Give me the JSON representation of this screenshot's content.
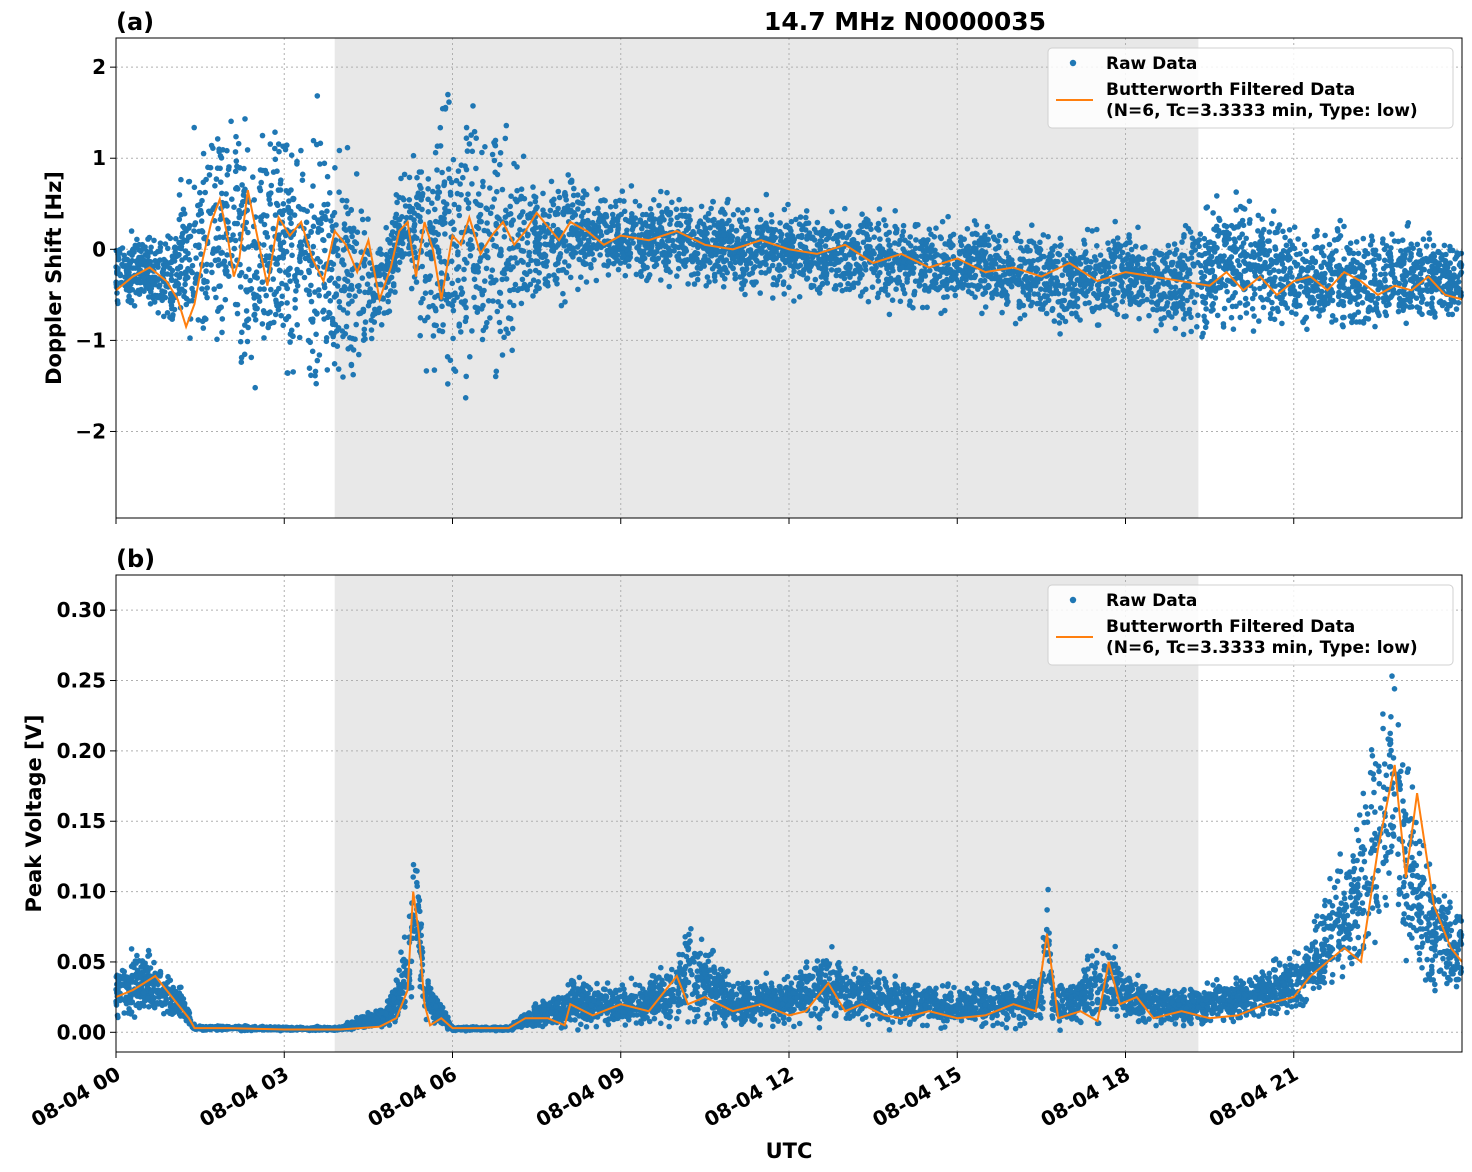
{
  "colors": {
    "raw": "#1f77b4",
    "filtered": "#ff7f0e",
    "shade": "#e8e8e8",
    "grid": "#b0b0b0"
  },
  "chart_data": [
    {
      "type": "scatter",
      "panel_label": "(a)",
      "title": "14.7 MHz N0000035",
      "ylabel": "Doppler Shift [Hz]",
      "xlabel": "",
      "xlim_hours": [
        0,
        24
      ],
      "ylim": [
        -2.95,
        2.32
      ],
      "yticks": [
        2,
        1,
        0,
        -1,
        -2
      ],
      "ytick_labels": [
        "2",
        "1",
        "0",
        "−1",
        "−2"
      ],
      "shaded_interval_hours": [
        3.9,
        19.3
      ],
      "grid": true,
      "legend_position": "top-right",
      "legend": [
        "Raw Data",
        "Butterworth Filtered Data",
        "(N=6, Tc=3.3333 min, Type: low)"
      ],
      "series": [
        {
          "name": "Butterworth Filtered Data",
          "kind": "line",
          "x": [
            0,
            0.3,
            0.6,
            0.9,
            1.1,
            1.25,
            1.4,
            1.55,
            1.7,
            1.85,
            2.0,
            2.1,
            2.2,
            2.35,
            2.5,
            2.7,
            2.9,
            3.1,
            3.3,
            3.5,
            3.7,
            3.9,
            4.1,
            4.3,
            4.5,
            4.7,
            4.9,
            5.05,
            5.2,
            5.35,
            5.5,
            5.65,
            5.8,
            6.0,
            6.15,
            6.3,
            6.5,
            6.7,
            6.9,
            7.1,
            7.3,
            7.5,
            7.7,
            7.9,
            8.1,
            8.4,
            8.7,
            9.0,
            9.5,
            10.0,
            10.5,
            11.0,
            11.5,
            12.0,
            12.5,
            13.0,
            13.5,
            14.0,
            14.5,
            15.0,
            15.5,
            16.0,
            16.5,
            17.0,
            17.5,
            18.0,
            18.5,
            19.0,
            19.5,
            19.8,
            20.1,
            20.4,
            20.7,
            21.0,
            21.3,
            21.6,
            21.9,
            22.2,
            22.5,
            22.8,
            23.1,
            23.4,
            23.7,
            24.0
          ],
          "y": [
            -0.45,
            -0.3,
            -0.2,
            -0.35,
            -0.55,
            -0.85,
            -0.6,
            -0.1,
            0.3,
            0.55,
            0.1,
            -0.3,
            -0.1,
            0.65,
            0.2,
            -0.4,
            0.35,
            0.15,
            0.3,
            -0.1,
            -0.35,
            0.2,
            0.05,
            -0.25,
            0.1,
            -0.55,
            -0.2,
            0.2,
            0.3,
            -0.3,
            0.3,
            0.0,
            -0.55,
            0.15,
            0.05,
            0.35,
            -0.05,
            0.15,
            0.3,
            0.05,
            0.2,
            0.4,
            0.25,
            0.1,
            0.3,
            0.2,
            0.05,
            0.15,
            0.1,
            0.2,
            0.05,
            0.0,
            0.1,
            0.0,
            -0.05,
            0.05,
            -0.15,
            -0.05,
            -0.2,
            -0.1,
            -0.25,
            -0.2,
            -0.3,
            -0.15,
            -0.35,
            -0.25,
            -0.3,
            -0.35,
            -0.4,
            -0.25,
            -0.45,
            -0.3,
            -0.5,
            -0.35,
            -0.3,
            -0.45,
            -0.25,
            -0.35,
            -0.5,
            -0.4,
            -0.45,
            -0.3,
            -0.5,
            -0.55
          ]
        },
        {
          "name": "Raw Data",
          "kind": "scatter-envelope",
          "x": [
            0,
            0.5,
            1.0,
            1.3,
            1.5,
            1.8,
            2.0,
            2.3,
            2.6,
            3.0,
            3.3,
            3.6,
            4.0,
            4.3,
            4.6,
            4.9,
            5.2,
            5.5,
            5.8,
            6.1,
            6.4,
            6.7,
            7.0,
            7.3,
            7.6,
            8.0,
            8.2,
            9.0,
            10.0,
            11.0,
            12.0,
            13.0,
            14.0,
            15.0,
            16.0,
            17.0,
            18.0,
            19.0,
            19.5,
            20.0,
            21.0,
            22.0,
            23.0,
            24.0
          ],
          "y_low": [
            -0.7,
            -0.6,
            -1.0,
            -1.1,
            -1.2,
            -1.4,
            -1.5,
            -1.4,
            -1.5,
            -1.7,
            -1.6,
            -1.8,
            -1.8,
            -1.6,
            -1.2,
            -0.8,
            -0.3,
            -1.6,
            -1.8,
            -1.7,
            -1.8,
            -1.7,
            -1.5,
            -0.8,
            -0.6,
            -0.7,
            -0.4,
            -0.35,
            -0.4,
            -0.5,
            -0.6,
            -0.6,
            -0.7,
            -0.7,
            -0.8,
            -0.9,
            -0.9,
            -1.0,
            -1.1,
            -1.0,
            -0.9,
            -1.0,
            -0.9,
            -0.8
          ],
          "y_high": [
            0.2,
            0.2,
            0.3,
            1.2,
            1.4,
            1.6,
            1.8,
            1.5,
            1.4,
            1.6,
            1.6,
            1.5,
            1.3,
            0.9,
            0.3,
            0.5,
            1.1,
            1.6,
            1.9,
            1.8,
            1.7,
            1.6,
            1.5,
            0.9,
            0.8,
            1.0,
            0.8,
            0.7,
            0.6,
            0.6,
            0.5,
            0.5,
            0.45,
            0.4,
            0.3,
            0.25,
            0.3,
            0.35,
            0.6,
            0.7,
            0.35,
            0.3,
            0.35,
            0.1
          ]
        }
      ]
    },
    {
      "type": "scatter",
      "panel_label": "(b)",
      "title": "",
      "ylabel": "Peak Voltage [V]",
      "xlabel": "UTC",
      "xlim_hours": [
        0,
        24
      ],
      "ylim": [
        -0.014,
        0.325
      ],
      "yticks": [
        0.3,
        0.25,
        0.2,
        0.15,
        0.1,
        0.05,
        0.0
      ],
      "ytick_labels": [
        "0.30",
        "0.25",
        "0.20",
        "0.15",
        "0.10",
        "0.05",
        "0.00"
      ],
      "xticks_hours": [
        0,
        3,
        6,
        9,
        12,
        15,
        18,
        21
      ],
      "xtick_labels": [
        "08-04 00",
        "08-04 03",
        "08-04 06",
        "08-04 09",
        "08-04 12",
        "08-04 15",
        "08-04 18",
        "08-04 21"
      ],
      "shaded_interval_hours": [
        3.9,
        19.3
      ],
      "grid": true,
      "legend_position": "top-right",
      "legend": [
        "Raw Data",
        "Butterworth Filtered Data",
        "(N=6, Tc=3.3333 min, Type: low)"
      ],
      "series": [
        {
          "name": "Butterworth Filtered Data",
          "kind": "line",
          "x": [
            0,
            0.3,
            0.5,
            0.7,
            0.9,
            1.1,
            1.3,
            1.4,
            2.0,
            3.0,
            4.0,
            4.7,
            5.0,
            5.2,
            5.3,
            5.4,
            5.5,
            5.6,
            5.8,
            6.0,
            7.0,
            7.3,
            7.7,
            8.0,
            8.1,
            8.5,
            9.0,
            9.5,
            10.0,
            10.2,
            10.5,
            11.0,
            11.5,
            12.0,
            12.3,
            12.7,
            13.0,
            13.3,
            13.7,
            14.0,
            14.5,
            15.0,
            15.5,
            16.0,
            16.4,
            16.6,
            16.8,
            17.2,
            17.5,
            17.7,
            17.9,
            18.2,
            18.5,
            19.0,
            19.5,
            20.0,
            20.5,
            21.0,
            21.3,
            21.6,
            21.9,
            22.2,
            22.5,
            22.8,
            23.0,
            23.2,
            23.5,
            23.8,
            24.0
          ],
          "y": [
            0.025,
            0.03,
            0.035,
            0.04,
            0.03,
            0.02,
            0.01,
            0.003,
            0.003,
            0.002,
            0.002,
            0.004,
            0.01,
            0.03,
            0.1,
            0.07,
            0.02,
            0.005,
            0.01,
            0.003,
            0.003,
            0.01,
            0.01,
            0.005,
            0.02,
            0.012,
            0.02,
            0.015,
            0.04,
            0.02,
            0.025,
            0.015,
            0.02,
            0.012,
            0.015,
            0.035,
            0.015,
            0.02,
            0.012,
            0.01,
            0.015,
            0.01,
            0.012,
            0.02,
            0.015,
            0.07,
            0.01,
            0.015,
            0.008,
            0.05,
            0.02,
            0.025,
            0.01,
            0.015,
            0.01,
            0.012,
            0.02,
            0.025,
            0.04,
            0.05,
            0.06,
            0.05,
            0.13,
            0.19,
            0.11,
            0.17,
            0.09,
            0.06,
            0.05
          ]
        },
        {
          "name": "Raw Data",
          "kind": "scatter-envelope",
          "x": [
            0,
            0.3,
            0.6,
            0.9,
            1.2,
            1.4,
            2.0,
            3.0,
            4.0,
            4.7,
            5.0,
            5.2,
            5.35,
            5.5,
            5.7,
            6.0,
            7.0,
            7.4,
            7.8,
            8.0,
            8.1,
            9.0,
            10.0,
            10.2,
            11.0,
            12.0,
            12.7,
            13.0,
            14.0,
            15.0,
            16.0,
            16.5,
            16.6,
            16.7,
            17.0,
            17.7,
            18.0,
            19.0,
            20.0,
            21.0,
            21.5,
            22.0,
            22.5,
            22.8,
            23.0,
            23.5,
            24.0
          ],
          "y_low": [
            0.005,
            0.01,
            0.01,
            0.008,
            0.005,
            0.001,
            0.001,
            0.001,
            0.001,
            0.001,
            0.002,
            0.005,
            0.04,
            0.005,
            0.003,
            0.001,
            0.001,
            0.002,
            0.002,
            0.002,
            0.003,
            0.003,
            0.005,
            0.004,
            0.003,
            0.003,
            0.003,
            0.003,
            0.003,
            0.003,
            0.003,
            0.003,
            0.02,
            0.003,
            0.003,
            0.003,
            0.003,
            0.003,
            0.005,
            0.01,
            0.02,
            0.03,
            0.05,
            0.06,
            0.04,
            0.02,
            0.02
          ],
          "y_high": [
            0.05,
            0.06,
            0.06,
            0.045,
            0.03,
            0.005,
            0.005,
            0.004,
            0.004,
            0.02,
            0.04,
            0.09,
            0.15,
            0.06,
            0.03,
            0.004,
            0.004,
            0.02,
            0.03,
            0.03,
            0.04,
            0.035,
            0.05,
            0.09,
            0.04,
            0.04,
            0.07,
            0.05,
            0.04,
            0.035,
            0.04,
            0.045,
            0.13,
            0.04,
            0.04,
            0.07,
            0.045,
            0.035,
            0.04,
            0.06,
            0.1,
            0.14,
            0.25,
            0.29,
            0.2,
            0.12,
            0.09
          ]
        }
      ]
    }
  ]
}
